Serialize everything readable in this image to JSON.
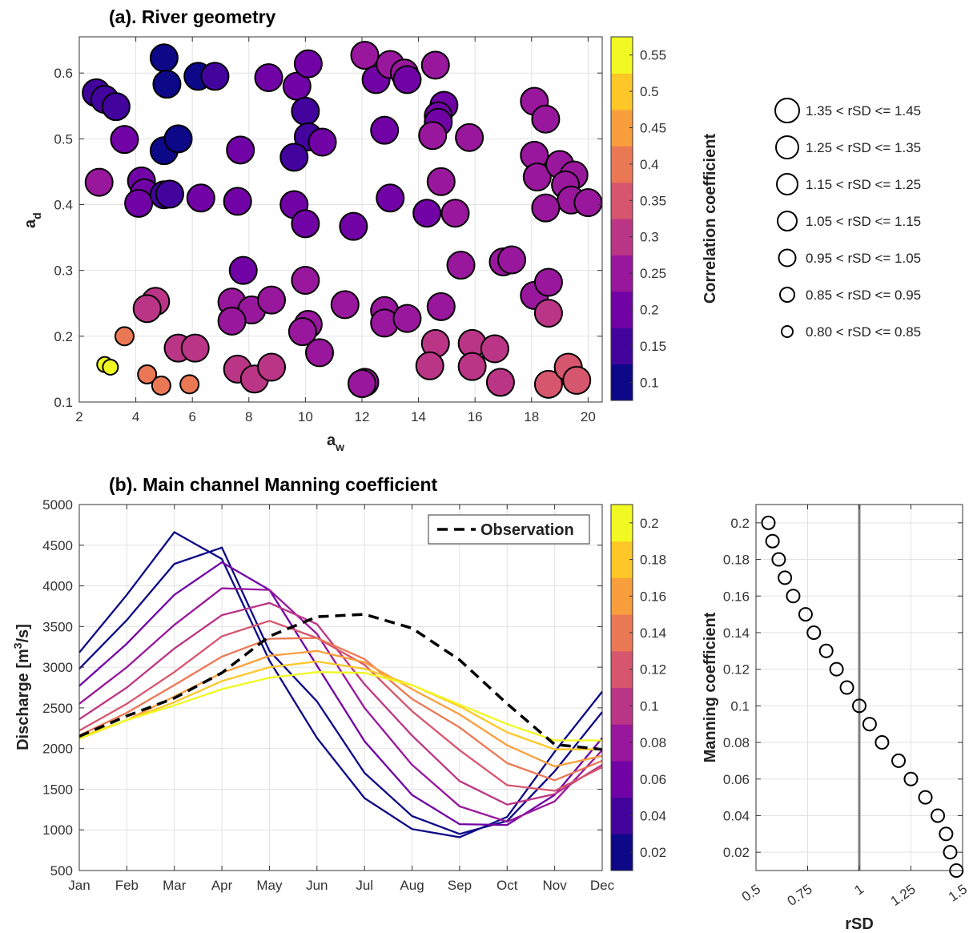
{
  "chart_data": [
    {
      "id": "a",
      "type": "scatter",
      "title": "(a). River geometry",
      "xlabel": "a",
      "xlabel_sub": "w",
      "ylabel": "a",
      "ylabel_sub": "d",
      "xlim": [
        2,
        20.5
      ],
      "ylim": [
        0.1,
        0.655
      ],
      "xticks": [
        2,
        4,
        6,
        8,
        10,
        12,
        14,
        16,
        18,
        20
      ],
      "yticks": [
        0.1,
        0.2,
        0.3,
        0.4,
        0.5,
        0.6
      ],
      "grid": true,
      "colorbar": {
        "label": "Correlation coefficient",
        "range": [
          0.075,
          0.575
        ],
        "levels": 10,
        "ticks": [
          0.1,
          0.15,
          0.2,
          0.25,
          0.3,
          0.35,
          0.4,
          0.45,
          0.5,
          0.55
        ],
        "colormap": "plasma"
      },
      "size_legend": [
        "1.35 < rSD <= 1.45",
        "1.25 < rSD <= 1.35",
        "1.15 < rSD <= 1.25",
        "1.05 < rSD <= 1.15",
        "0.95 < rSD <= 1.05",
        "0.85 < rSD <= 0.95",
        "0.80 < rSD <= 0.85"
      ],
      "points": [
        {
          "x": 2.6,
          "y": 0.57,
          "c": 0.17
        },
        {
          "x": 2.9,
          "y": 0.56,
          "c": 0.16
        },
        {
          "x": 3.3,
          "y": 0.549,
          "c": 0.14
        },
        {
          "x": 3.6,
          "y": 0.499,
          "c": 0.2
        },
        {
          "x": 2.7,
          "y": 0.434,
          "c": 0.25
        },
        {
          "x": 4.2,
          "y": 0.436,
          "c": 0.18
        },
        {
          "x": 4.3,
          "y": 0.418,
          "c": 0.2
        },
        {
          "x": 4.1,
          "y": 0.402,
          "c": 0.19
        },
        {
          "x": 5.0,
          "y": 0.415,
          "c": 0.15
        },
        {
          "x": 5.2,
          "y": 0.416,
          "c": 0.16
        },
        {
          "x": 5.0,
          "y": 0.623,
          "c": 0.1
        },
        {
          "x": 5.1,
          "y": 0.583,
          "c": 0.11
        },
        {
          "x": 5.0,
          "y": 0.482,
          "c": 0.11
        },
        {
          "x": 5.5,
          "y": 0.5,
          "c": 0.12
        },
        {
          "x": 6.3,
          "y": 0.41,
          "c": 0.19
        },
        {
          "x": 6.2,
          "y": 0.595,
          "c": 0.12
        },
        {
          "x": 6.8,
          "y": 0.595,
          "c": 0.13
        },
        {
          "x": 7.7,
          "y": 0.483,
          "c": 0.2
        },
        {
          "x": 7.6,
          "y": 0.405,
          "c": 0.19
        },
        {
          "x": 8.7,
          "y": 0.593,
          "c": 0.22
        },
        {
          "x": 9.7,
          "y": 0.58,
          "c": 0.18
        },
        {
          "x": 10.1,
          "y": 0.614,
          "c": 0.19
        },
        {
          "x": 10.0,
          "y": 0.542,
          "c": 0.17
        },
        {
          "x": 10.1,
          "y": 0.503,
          "c": 0.17
        },
        {
          "x": 10.6,
          "y": 0.495,
          "c": 0.18
        },
        {
          "x": 9.6,
          "y": 0.472,
          "c": 0.17
        },
        {
          "x": 9.6,
          "y": 0.4,
          "c": 0.18
        },
        {
          "x": 10.0,
          "y": 0.371,
          "c": 0.18
        },
        {
          "x": 11.7,
          "y": 0.367,
          "c": 0.2
        },
        {
          "x": 12.1,
          "y": 0.627,
          "c": 0.23
        },
        {
          "x": 12.5,
          "y": 0.59,
          "c": 0.22
        },
        {
          "x": 13.0,
          "y": 0.613,
          "c": 0.23
        },
        {
          "x": 13.5,
          "y": 0.6,
          "c": 0.23
        },
        {
          "x": 13.6,
          "y": 0.59,
          "c": 0.22
        },
        {
          "x": 12.8,
          "y": 0.513,
          "c": 0.22
        },
        {
          "x": 13.0,
          "y": 0.41,
          "c": 0.2
        },
        {
          "x": 14.6,
          "y": 0.612,
          "c": 0.24
        },
        {
          "x": 14.9,
          "y": 0.551,
          "c": 0.22
        },
        {
          "x": 14.7,
          "y": 0.535,
          "c": 0.2
        },
        {
          "x": 14.7,
          "y": 0.525,
          "c": 0.21
        },
        {
          "x": 14.5,
          "y": 0.505,
          "c": 0.23
        },
        {
          "x": 15.8,
          "y": 0.502,
          "c": 0.25
        },
        {
          "x": 14.8,
          "y": 0.435,
          "c": 0.23
        },
        {
          "x": 14.3,
          "y": 0.387,
          "c": 0.22
        },
        {
          "x": 15.3,
          "y": 0.387,
          "c": 0.23
        },
        {
          "x": 18.1,
          "y": 0.557,
          "c": 0.24
        },
        {
          "x": 18.5,
          "y": 0.53,
          "c": 0.24
        },
        {
          "x": 18.1,
          "y": 0.475,
          "c": 0.24
        },
        {
          "x": 18.2,
          "y": 0.442,
          "c": 0.24
        },
        {
          "x": 19.0,
          "y": 0.461,
          "c": 0.24
        },
        {
          "x": 19.5,
          "y": 0.445,
          "c": 0.24
        },
        {
          "x": 19.2,
          "y": 0.43,
          "c": 0.24
        },
        {
          "x": 19.4,
          "y": 0.407,
          "c": 0.24
        },
        {
          "x": 20.0,
          "y": 0.403,
          "c": 0.25
        },
        {
          "x": 18.5,
          "y": 0.395,
          "c": 0.26
        },
        {
          "x": 7.8,
          "y": 0.3,
          "c": 0.19
        },
        {
          "x": 10.0,
          "y": 0.285,
          "c": 0.24
        },
        {
          "x": 4.7,
          "y": 0.253,
          "c": 0.28
        },
        {
          "x": 4.4,
          "y": 0.242,
          "c": 0.28
        },
        {
          "x": 7.4,
          "y": 0.252,
          "c": 0.25
        },
        {
          "x": 8.1,
          "y": 0.24,
          "c": 0.26
        },
        {
          "x": 8.8,
          "y": 0.255,
          "c": 0.27
        },
        {
          "x": 7.4,
          "y": 0.223,
          "c": 0.25
        },
        {
          "x": 11.4,
          "y": 0.248,
          "c": 0.26
        },
        {
          "x": 12.8,
          "y": 0.239,
          "c": 0.24
        },
        {
          "x": 12.8,
          "y": 0.22,
          "c": 0.24
        },
        {
          "x": 13.6,
          "y": 0.227,
          "c": 0.26
        },
        {
          "x": 14.8,
          "y": 0.245,
          "c": 0.27
        },
        {
          "x": 15.5,
          "y": 0.308,
          "c": 0.27
        },
        {
          "x": 17.0,
          "y": 0.313,
          "c": 0.27
        },
        {
          "x": 17.3,
          "y": 0.316,
          "c": 0.27
        },
        {
          "x": 18.1,
          "y": 0.262,
          "c": 0.27
        },
        {
          "x": 18.6,
          "y": 0.282,
          "c": 0.27
        },
        {
          "x": 18.6,
          "y": 0.235,
          "c": 0.28
        },
        {
          "x": 10.1,
          "y": 0.218,
          "c": 0.25
        },
        {
          "x": 9.9,
          "y": 0.207,
          "c": 0.25
        },
        {
          "x": 5.5,
          "y": 0.182,
          "c": 0.28
        },
        {
          "x": 6.1,
          "y": 0.182,
          "c": 0.28
        },
        {
          "x": 10.5,
          "y": 0.175,
          "c": 0.27
        },
        {
          "x": 14.6,
          "y": 0.189,
          "c": 0.28
        },
        {
          "x": 15.9,
          "y": 0.189,
          "c": 0.28
        },
        {
          "x": 16.7,
          "y": 0.181,
          "c": 0.28
        },
        {
          "x": 3.6,
          "y": 0.2,
          "c": 0.42
        },
        {
          "x": 4.4,
          "y": 0.142,
          "c": 0.42
        },
        {
          "x": 4.9,
          "y": 0.125,
          "c": 0.42
        },
        {
          "x": 5.9,
          "y": 0.127,
          "c": 0.39
        },
        {
          "x": 7.6,
          "y": 0.15,
          "c": 0.3
        },
        {
          "x": 8.2,
          "y": 0.135,
          "c": 0.3
        },
        {
          "x": 8.8,
          "y": 0.153,
          "c": 0.3
        },
        {
          "x": 12.1,
          "y": 0.13,
          "c": 0.25
        },
        {
          "x": 12.0,
          "y": 0.128,
          "c": 0.24
        },
        {
          "x": 14.4,
          "y": 0.155,
          "c": 0.3
        },
        {
          "x": 15.9,
          "y": 0.154,
          "c": 0.3
        },
        {
          "x": 16.9,
          "y": 0.13,
          "c": 0.32
        },
        {
          "x": 18.6,
          "y": 0.127,
          "c": 0.33
        },
        {
          "x": 19.3,
          "y": 0.153,
          "c": 0.33
        },
        {
          "x": 19.6,
          "y": 0.133,
          "c": 0.33
        },
        {
          "x": 2.9,
          "y": 0.157,
          "c": 0.55
        },
        {
          "x": 3.1,
          "y": 0.153,
          "c": 0.55
        }
      ]
    },
    {
      "id": "b",
      "type": "line",
      "title": "(b). Main channel Manning coefficient",
      "ylabel": "Discharge [m",
      "ylabel_sup": "3",
      "ylabel_tail": "/s]",
      "categories": [
        "Jan",
        "Feb",
        "Mar",
        "Apr",
        "May",
        "Jun",
        "Jul",
        "Aug",
        "Sep",
        "Oct",
        "Nov",
        "Dec"
      ],
      "ylim": [
        500,
        5000
      ],
      "yticks": [
        500,
        1000,
        1500,
        2000,
        2500,
        3000,
        3500,
        4000,
        4500,
        5000
      ],
      "grid": true,
      "legend": {
        "label": "Observation",
        "position": "top-right"
      },
      "observation": [
        2150,
        2400,
        2620,
        2930,
        3380,
        3620,
        3650,
        3480,
        3090,
        2550,
        2050,
        1990
      ],
      "colorbar": {
        "label": "Manning coefficient",
        "range": [
          0.01,
          0.21
        ],
        "levels": 10,
        "ticks": [
          0.02,
          0.04,
          0.06,
          0.08,
          0.1,
          0.12,
          0.14,
          0.16,
          0.18,
          0.2
        ],
        "colormap": "plasma"
      },
      "series": [
        {
          "n": 0.01,
          "values": [
            3180,
            3890,
            4660,
            4330,
            3080,
            2130,
            1390,
            1010,
            910,
            1160,
            1960,
            2700
          ]
        },
        {
          "n": 0.03,
          "values": [
            2980,
            3580,
            4270,
            4470,
            3200,
            2580,
            1700,
            1170,
            950,
            1110,
            1720,
            2450
          ]
        },
        {
          "n": 0.05,
          "values": [
            2770,
            3290,
            3890,
            4290,
            3950,
            3020,
            2090,
            1430,
            1070,
            1060,
            1430,
            2130
          ]
        },
        {
          "n": 0.07,
          "values": [
            2550,
            3000,
            3520,
            3970,
            3950,
            3410,
            2500,
            1800,
            1290,
            1100,
            1350,
            1980
          ]
        },
        {
          "n": 0.09,
          "values": [
            2360,
            2750,
            3230,
            3640,
            3790,
            3530,
            2790,
            2160,
            1600,
            1310,
            1440,
            1800
          ]
        },
        {
          "n": 0.11,
          "values": [
            2220,
            2550,
            2940,
            3380,
            3570,
            3360,
            3030,
            2460,
            1980,
            1550,
            1480,
            1770
          ]
        },
        {
          "n": 0.13,
          "values": [
            2160,
            2440,
            2780,
            3130,
            3350,
            3360,
            3100,
            2610,
            2260,
            1820,
            1610,
            1850
          ]
        },
        {
          "n": 0.15,
          "values": [
            2120,
            2350,
            2640,
            2930,
            3140,
            3200,
            3060,
            2730,
            2420,
            2040,
            1780,
            1910
          ]
        },
        {
          "n": 0.17,
          "values": [
            2140,
            2350,
            2570,
            2830,
            3000,
            3070,
            2980,
            2780,
            2520,
            2200,
            1990,
            1990
          ]
        },
        {
          "n": 0.19,
          "values": [
            2120,
            2350,
            2530,
            2730,
            2870,
            2940,
            2930,
            2780,
            2540,
            2300,
            2100,
            2100
          ]
        }
      ]
    },
    {
      "id": "c",
      "type": "scatter",
      "xlabel": "rSD",
      "xlim": [
        0.5,
        1.5
      ],
      "ylim": [
        0.01,
        0.21
      ],
      "xticks": [
        0.5,
        0.75,
        1,
        1.25,
        1.5
      ],
      "xticklabels": [
        "0.5",
        "0.75",
        "1",
        "1.25",
        "1.5"
      ],
      "yticks": [
        0.02,
        0.04,
        0.06,
        0.08,
        0.1,
        0.12,
        0.14,
        0.16,
        0.18,
        0.2
      ],
      "vline": 1,
      "grid": true,
      "points": [
        {
          "x": 0.56,
          "y": 0.2
        },
        {
          "x": 0.58,
          "y": 0.19
        },
        {
          "x": 0.61,
          "y": 0.18
        },
        {
          "x": 0.64,
          "y": 0.17
        },
        {
          "x": 0.68,
          "y": 0.16
        },
        {
          "x": 0.74,
          "y": 0.15
        },
        {
          "x": 0.78,
          "y": 0.14
        },
        {
          "x": 0.84,
          "y": 0.13
        },
        {
          "x": 0.89,
          "y": 0.12
        },
        {
          "x": 0.94,
          "y": 0.11
        },
        {
          "x": 1.0,
          "y": 0.1
        },
        {
          "x": 1.05,
          "y": 0.09
        },
        {
          "x": 1.11,
          "y": 0.08
        },
        {
          "x": 1.19,
          "y": 0.07
        },
        {
          "x": 1.25,
          "y": 0.06
        },
        {
          "x": 1.32,
          "y": 0.05
        },
        {
          "x": 1.38,
          "y": 0.04
        },
        {
          "x": 1.42,
          "y": 0.03
        },
        {
          "x": 1.44,
          "y": 0.02
        },
        {
          "x": 1.47,
          "y": 0.01
        }
      ]
    }
  ]
}
